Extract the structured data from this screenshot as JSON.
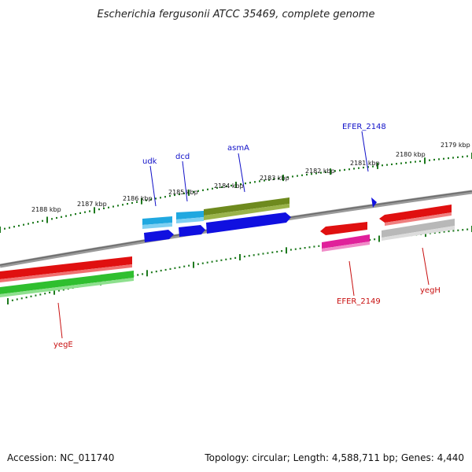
{
  "title": "Escherichia fergusonii ATCC 35469, complete genome",
  "footer": {
    "accession": "Accession: NC_011740",
    "topology": "Topology: circular; Length: 4,588,711 bp; Genes: 4,440"
  },
  "kbp_labels": [
    "2188 kbp",
    "2187 kbp",
    "2186 kbp",
    "2185 kbp",
    "2184 kbp",
    "2183 kbp",
    "2182 kbp",
    "2181 kbp",
    "2180 kbp",
    "2179 kbp"
  ],
  "gene_labels": {
    "udk": "udk",
    "dcd": "dcd",
    "asmA": "asmA",
    "efer2148": "EFER_2148",
    "efer2149": "EFER_2149",
    "yegH": "yegH",
    "yegE": "yegE"
  },
  "colors": {
    "backbone": "#808080",
    "tick": "#1e7a1e",
    "forward_label": "#1010c8",
    "reverse_label": "#c81010",
    "cds_red": "#e01010",
    "cds_green": "#2fbf2f",
    "cds_blue": "#1010e0",
    "cds_cyan": "#20a8e0",
    "cds_olive": "#6e8a1e",
    "cds_pink": "#e0209a",
    "cds_gray": "#b8b8b8"
  }
}
